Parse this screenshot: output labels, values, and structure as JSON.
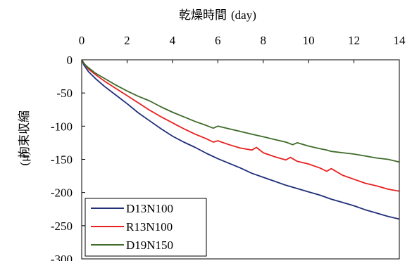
{
  "chart_data": {
    "type": "line",
    "title": "",
    "xlabel": "乾燥時間",
    "xunit": "(day)",
    "ylabel": "拘束収縮",
    "yunit": "(μ)",
    "xlim": [
      0,
      14
    ],
    "ylim": [
      -300,
      0
    ],
    "xticks": [
      0,
      2,
      4,
      6,
      8,
      10,
      12,
      14
    ],
    "yticks": [
      0,
      -50,
      -100,
      -150,
      -200,
      -250,
      -300
    ],
    "x_axis_position": "top",
    "grid": false,
    "legend_position": "bottom-left",
    "series": [
      {
        "name": "D13N100",
        "color": "#1f2f78",
        "points": [
          [
            0,
            0
          ],
          [
            0.1,
            -8
          ],
          [
            0.3,
            -18
          ],
          [
            0.6,
            -28
          ],
          [
            1,
            -40
          ],
          [
            1.5,
            -53
          ],
          [
            2,
            -66
          ],
          [
            2.5,
            -80
          ],
          [
            3,
            -92
          ],
          [
            3.5,
            -104
          ],
          [
            4,
            -115
          ],
          [
            4.5,
            -124
          ],
          [
            5,
            -132
          ],
          [
            5.5,
            -141
          ],
          [
            6,
            -149
          ],
          [
            6.5,
            -156
          ],
          [
            7,
            -163
          ],
          [
            7.5,
            -171
          ],
          [
            8,
            -177
          ],
          [
            8.5,
            -183
          ],
          [
            9,
            -189
          ],
          [
            9.5,
            -194
          ],
          [
            10,
            -199
          ],
          [
            10.5,
            -204
          ],
          [
            11,
            -210
          ],
          [
            11.5,
            -215
          ],
          [
            12,
            -220
          ],
          [
            12.5,
            -226
          ],
          [
            13,
            -231
          ],
          [
            13.5,
            -236
          ],
          [
            14,
            -240
          ]
        ]
      },
      {
        "name": "R13N100",
        "color": "#e8201f",
        "points": [
          [
            0,
            0
          ],
          [
            0.1,
            -5
          ],
          [
            0.3,
            -14
          ],
          [
            0.6,
            -22
          ],
          [
            1,
            -32
          ],
          [
            1.5,
            -43
          ],
          [
            2,
            -54
          ],
          [
            2.5,
            -65
          ],
          [
            3,
            -76
          ],
          [
            3.5,
            -86
          ],
          [
            4,
            -95
          ],
          [
            4.5,
            -104
          ],
          [
            5,
            -112
          ],
          [
            5.5,
            -119
          ],
          [
            5.8,
            -124
          ],
          [
            6,
            -122
          ],
          [
            6.5,
            -128
          ],
          [
            7,
            -133
          ],
          [
            7.5,
            -136
          ],
          [
            7.7,
            -132
          ],
          [
            8,
            -140
          ],
          [
            8.5,
            -146
          ],
          [
            9,
            -151
          ],
          [
            9.2,
            -147
          ],
          [
            9.5,
            -153
          ],
          [
            10,
            -157
          ],
          [
            10.5,
            -163
          ],
          [
            10.8,
            -168
          ],
          [
            11,
            -164
          ],
          [
            11.5,
            -174
          ],
          [
            12,
            -180
          ],
          [
            12.5,
            -186
          ],
          [
            13,
            -190
          ],
          [
            13.5,
            -195
          ],
          [
            14,
            -198
          ]
        ]
      },
      {
        "name": "D19N150",
        "color": "#3e6b2a",
        "points": [
          [
            0,
            0
          ],
          [
            0.1,
            -6
          ],
          [
            0.3,
            -12
          ],
          [
            0.6,
            -20
          ],
          [
            1,
            -28
          ],
          [
            1.5,
            -38
          ],
          [
            2,
            -47
          ],
          [
            2.5,
            -55
          ],
          [
            3,
            -62
          ],
          [
            3.5,
            -71
          ],
          [
            4,
            -79
          ],
          [
            4.5,
            -86
          ],
          [
            5,
            -93
          ],
          [
            5.5,
            -99
          ],
          [
            5.8,
            -103
          ],
          [
            6,
            -100
          ],
          [
            6.5,
            -104
          ],
          [
            7,
            -108
          ],
          [
            7.5,
            -112
          ],
          [
            8,
            -116
          ],
          [
            8.5,
            -120
          ],
          [
            9,
            -124
          ],
          [
            9.3,
            -128
          ],
          [
            9.5,
            -125
          ],
          [
            10,
            -130
          ],
          [
            10.5,
            -134
          ],
          [
            10.8,
            -136
          ],
          [
            11,
            -138
          ],
          [
            11.5,
            -140
          ],
          [
            12,
            -142
          ],
          [
            12.5,
            -145
          ],
          [
            13,
            -148
          ],
          [
            13.5,
            -150
          ],
          [
            14,
            -154
          ]
        ]
      }
    ]
  }
}
